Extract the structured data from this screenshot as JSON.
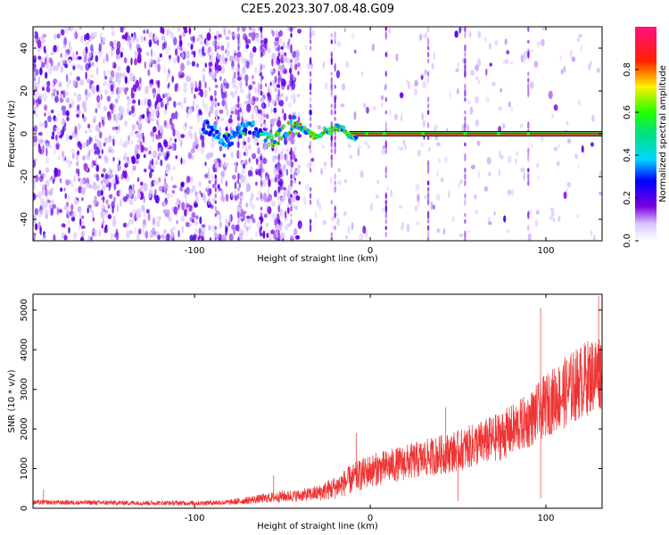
{
  "title": "C2E5.2023.307.08.48.G09",
  "chart_data": [
    {
      "type": "heatmap",
      "panel": "top",
      "xlabel": "Height of straight line (km)",
      "ylabel": "Frequency (Hz)",
      "xlim": [
        -192,
        132
      ],
      "ylim": [
        -50,
        50
      ],
      "xticks": [
        -100,
        0,
        100
      ],
      "xtick_labels": [
        "-100",
        "0",
        "100"
      ],
      "yticks": [
        -40,
        -20,
        0,
        20,
        40
      ],
      "ytick_labels": [
        "-40",
        "-20",
        "0",
        "20",
        "40"
      ],
      "colorbar": {
        "label": "Normalized spectral amplitude",
        "range": [
          0,
          1
        ],
        "ticks": [
          0.0,
          0.2,
          0.4,
          0.6,
          0.8
        ],
        "tick_labels": [
          "0.0",
          "0.2",
          "0.4",
          "0.6",
          "0.8"
        ]
      },
      "signal_band": {
        "x_range": [
          -95,
          132
        ],
        "frequency": 0,
        "amplitude": 0.9,
        "description_points_x": [
          -82,
          -72,
          -62,
          -52,
          -42,
          -32,
          -22,
          -12,
          -2,
          8,
          30,
          54,
          73,
          90
        ]
      },
      "vertical_streaks_x": [
        -88,
        -75,
        -62,
        -52,
        -45,
        -34,
        -22,
        -20,
        9,
        33,
        54,
        90
      ],
      "noise": {
        "dense_region_x": [
          -192,
          -40
        ],
        "sparse_region_x": [
          -40,
          132
        ],
        "color_amplitude": 0.15
      }
    },
    {
      "type": "line",
      "panel": "bottom",
      "xlabel": "Height of straight line (km)",
      "ylabel": "SNR (10 * v/v)",
      "xlim": [
        -192,
        132
      ],
      "ylim": [
        0,
        5400
      ],
      "xticks": [
        -100,
        0,
        100
      ],
      "xtick_labels": [
        "-100",
        "0",
        "100"
      ],
      "yticks": [
        0,
        1000,
        2000,
        3000,
        4000,
        5000
      ],
      "ytick_labels": [
        "0",
        "1000",
        "2000",
        "3000",
        "4000",
        "5000"
      ],
      "color": "#ee3333",
      "envelope": {
        "x": [
          -192,
          -150,
          -100,
          -80,
          -60,
          -50,
          -40,
          -30,
          -20,
          -10,
          0,
          10,
          20,
          30,
          40,
          50,
          60,
          70,
          80,
          90,
          100,
          110,
          120,
          132
        ],
        "y": [
          150,
          140,
          130,
          150,
          250,
          300,
          320,
          380,
          520,
          750,
          950,
          1050,
          1150,
          1250,
          1350,
          1450,
          1600,
          1750,
          1950,
          2200,
          2600,
          2900,
          3200,
          3500
        ],
        "amp": [
          60,
          60,
          60,
          70,
          120,
          150,
          150,
          200,
          300,
          380,
          420,
          430,
          450,
          480,
          500,
          520,
          560,
          600,
          650,
          700,
          800,
          900,
          950,
          1000
        ]
      },
      "spikes": [
        {
          "x": -186,
          "y": 480
        },
        {
          "x": -55,
          "y": 830
        },
        {
          "x": -8,
          "y": 1900
        },
        {
          "x": 43,
          "y": 2550
        },
        {
          "x": 50,
          "y": 180
        },
        {
          "x": 97,
          "y": 5050
        },
        {
          "x": 97,
          "y": 250
        },
        {
          "x": 130,
          "y": 5350
        }
      ]
    }
  ]
}
